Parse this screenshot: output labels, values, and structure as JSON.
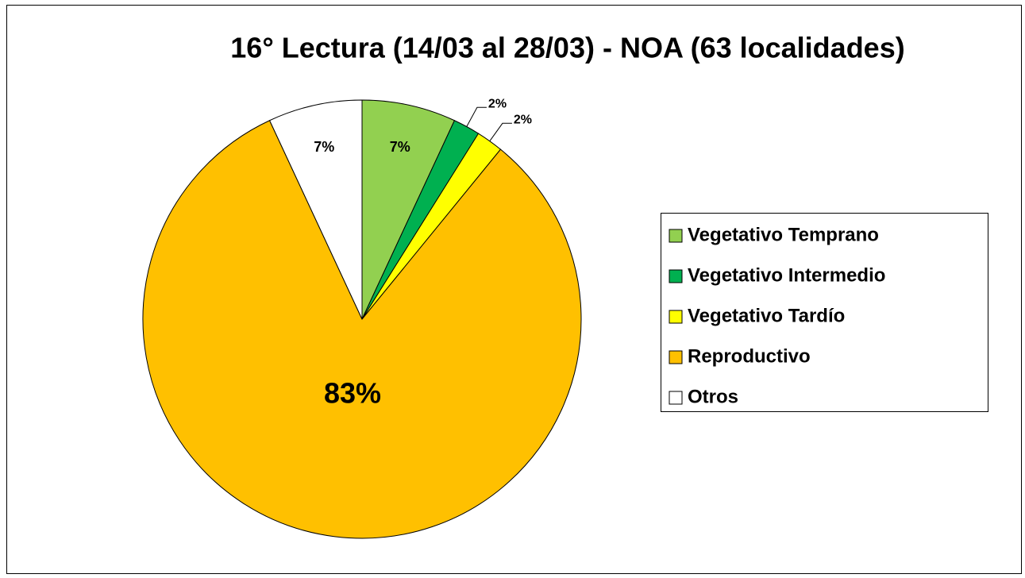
{
  "chart_data": {
    "type": "pie",
    "title": "16° Lectura (14/03 al 28/03) - NOA (63 localidades)",
    "categories": [
      "Vegetativo Temprano",
      "Vegetativo Intermedio",
      "Vegetativo Tardío",
      "Reproductivo",
      "Otros"
    ],
    "values": [
      7,
      2,
      2,
      83,
      7
    ],
    "value_labels": [
      "7%",
      "2%",
      "2%",
      "83%",
      "7%"
    ],
    "colors": [
      "#92d050",
      "#00b050",
      "#ffff00",
      "#ffc000",
      "#ffffff"
    ],
    "legend": "right"
  }
}
